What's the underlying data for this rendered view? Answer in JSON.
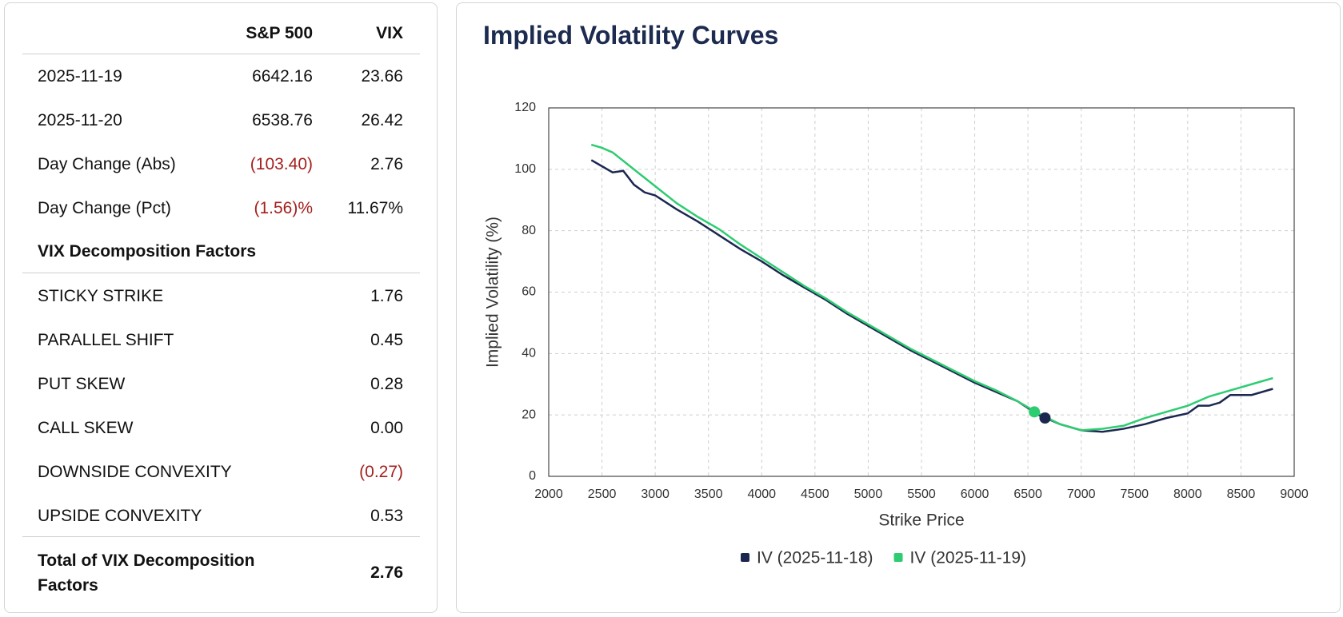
{
  "table": {
    "columns": [
      "S&P 500",
      "VIX"
    ],
    "rows": [
      {
        "label": "2025-11-19",
        "cells": [
          "6642.16",
          "23.66"
        ]
      },
      {
        "label": "2025-11-20",
        "cells": [
          "6538.76",
          "26.42"
        ]
      },
      {
        "label": "Day Change (Abs)",
        "cells": [
          "(103.40)",
          "2.76"
        ]
      },
      {
        "label": "Day Change (Pct)",
        "cells": [
          "(1.56)%",
          "11.67%"
        ]
      }
    ],
    "section": "VIX Decomposition Factors",
    "factors": [
      {
        "label": "STICKY STRIKE",
        "value": "1.76"
      },
      {
        "label": "PARALLEL SHIFT",
        "value": "0.45"
      },
      {
        "label": "PUT SKEW",
        "value": "0.28"
      },
      {
        "label": "CALL SKEW",
        "value": "0.00"
      },
      {
        "label": "DOWNSIDE CONVEXITY",
        "value": "(0.27)"
      },
      {
        "label": "UPSIDE CONVEXITY",
        "value": "0.53"
      }
    ],
    "total": {
      "label": "Total of VIX Decomposition Factors",
      "value": "2.76"
    }
  },
  "chart_data": {
    "type": "line",
    "title": "Implied Volatility Curves",
    "x_label": "Strike Price",
    "y_label": "Implied Volatility (%)",
    "xlim": [
      2000,
      9000
    ],
    "xticks": [
      2000,
      2500,
      3000,
      3500,
      4000,
      4500,
      5000,
      5500,
      6000,
      6500,
      7000,
      7500,
      8000,
      8500,
      9000
    ],
    "ylim": [
      0,
      120
    ],
    "yticks": [
      0,
      20,
      40,
      60,
      80,
      100,
      120
    ],
    "grid": true,
    "series": [
      {
        "name": "IV (2025-11-18)",
        "color": "#1c2750",
        "x": [
          2400,
          2500,
          2600,
          2700,
          2800,
          2900,
          3000,
          3200,
          3400,
          3600,
          3800,
          4000,
          4200,
          4400,
          4600,
          4800,
          5000,
          5200,
          5400,
          5600,
          5800,
          6000,
          6200,
          6400,
          6600,
          6800,
          7000,
          7200,
          7400,
          7600,
          7800,
          8000,
          8100,
          8200,
          8300,
          8400,
          8600,
          8800
        ],
        "values": [
          103,
          101,
          99,
          99.5,
          95,
          92.5,
          91.5,
          87,
          83,
          78.5,
          74,
          70,
          65.5,
          61.5,
          57.5,
          53,
          49,
          45,
          41,
          37.5,
          34,
          30.5,
          27.5,
          24.5,
          20,
          17,
          15,
          14.5,
          15.5,
          17,
          19,
          20.5,
          23,
          23,
          24,
          26.5,
          26.5,
          28.5
        ],
        "marker": {
          "x": 6660,
          "y": 19
        }
      },
      {
        "name": "IV (2025-11-19)",
        "color": "#2ecc71",
        "x": [
          2400,
          2500,
          2600,
          2800,
          3000,
          3200,
          3400,
          3600,
          3800,
          4000,
          4200,
          4400,
          4600,
          4800,
          5000,
          5200,
          5400,
          5600,
          5800,
          6000,
          6200,
          6400,
          6600,
          6800,
          7000,
          7200,
          7400,
          7600,
          7800,
          8000,
          8200,
          8400,
          8600,
          8800
        ],
        "values": [
          108,
          107,
          105.5,
          100,
          94.5,
          89,
          84.5,
          80.5,
          75.5,
          71,
          66.5,
          62,
          58,
          53.5,
          49.5,
          45.5,
          41.5,
          38,
          34.5,
          31,
          28,
          24.5,
          20.5,
          17,
          15,
          15.5,
          16.5,
          19,
          21,
          23,
          26,
          28,
          30,
          32
        ],
        "marker": {
          "x": 6560,
          "y": 21
        }
      }
    ]
  }
}
